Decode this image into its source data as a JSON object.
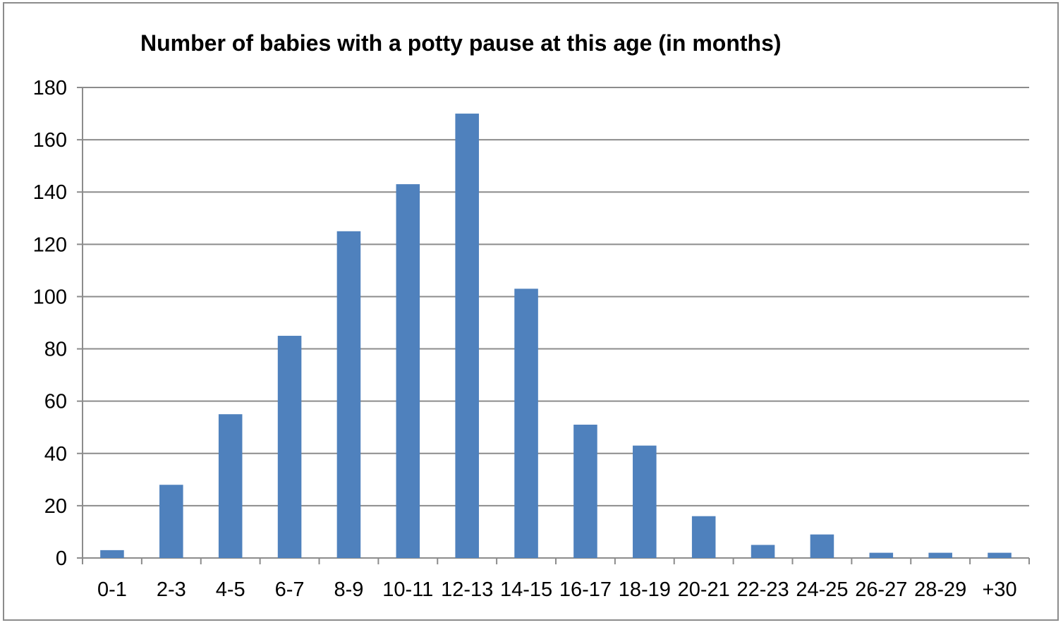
{
  "chart_data": {
    "type": "bar",
    "title": "Number of babies with a potty pause at this age (in months)",
    "xlabel": "",
    "ylabel": "",
    "categories": [
      "0-1",
      "2-3",
      "4-5",
      "6-7",
      "8-9",
      "10-11",
      "12-13",
      "14-15",
      "16-17",
      "18-19",
      "20-21",
      "22-23",
      "24-25",
      "26-27",
      "28-29",
      "+30"
    ],
    "values": [
      3,
      28,
      55,
      85,
      125,
      143,
      170,
      103,
      51,
      43,
      16,
      5,
      9,
      2,
      2,
      2
    ],
    "ylim": [
      0,
      180
    ],
    "yticks": [
      0,
      20,
      40,
      60,
      80,
      100,
      120,
      140,
      160,
      180
    ],
    "grid": true,
    "legend": "none",
    "colors": {
      "bar": "#4f81bd",
      "grid": "#8c8c8c",
      "axis": "#8c8c8c",
      "frame": "#8c8c8c"
    }
  }
}
